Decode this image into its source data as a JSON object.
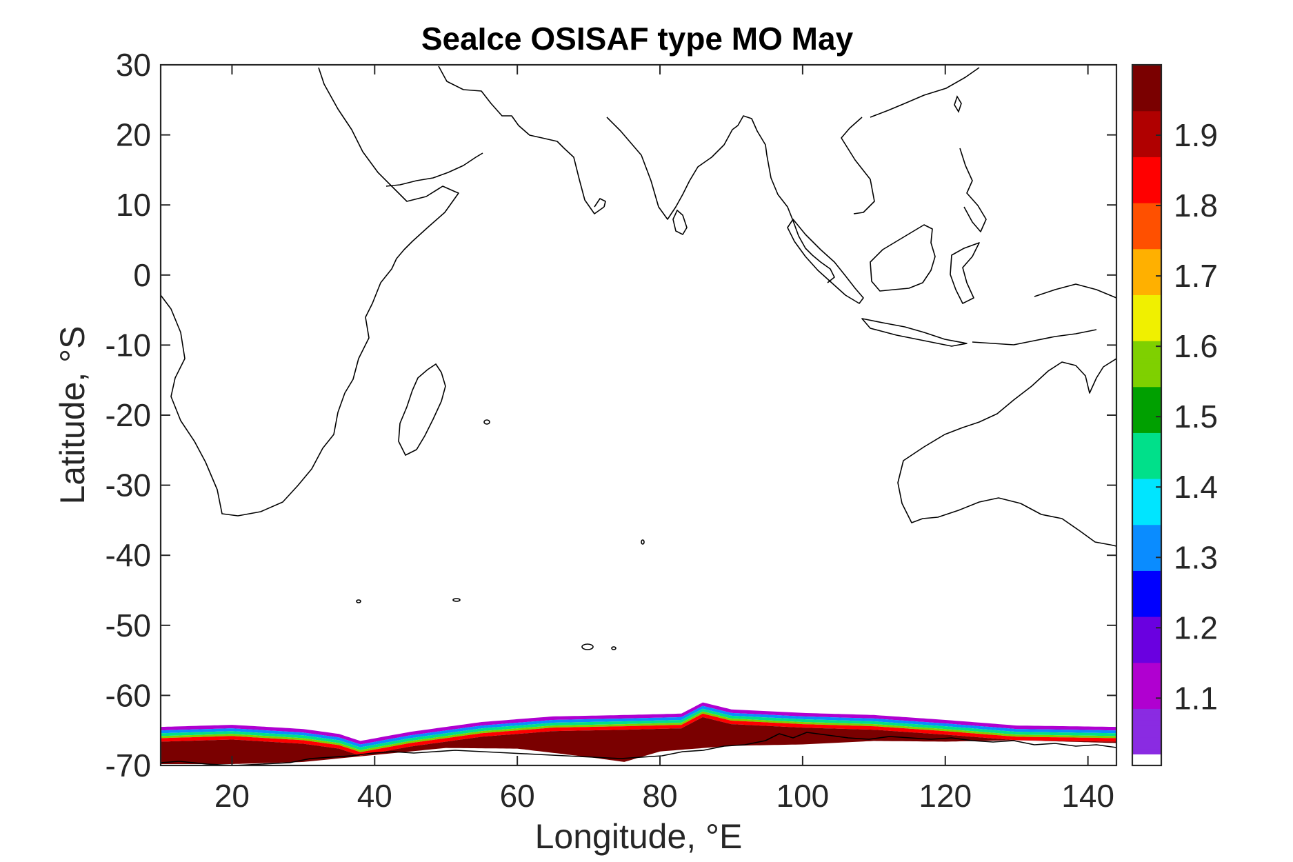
{
  "chart_data": {
    "type": "heatmap",
    "title": "SeaIce OSISAF type MO May",
    "xlabel": "Longitude, °E",
    "ylabel": "Latitude, °S",
    "xlim": [
      10,
      144
    ],
    "ylim": [
      -70,
      30
    ],
    "x_ticks": [
      20,
      40,
      60,
      80,
      100,
      120,
      140
    ],
    "y_ticks": [
      30,
      20,
      10,
      0,
      -10,
      -20,
      -30,
      -40,
      -50,
      -60,
      -70
    ],
    "x_tick_labels": [
      "20",
      "40",
      "60",
      "80",
      "100",
      "120",
      "140"
    ],
    "y_tick_labels": [
      "30",
      "20",
      "10",
      "0",
      "-10",
      "-20",
      "-30",
      "-40",
      "-50",
      "-60",
      "-70"
    ],
    "colorbar": {
      "range": [
        1.02,
        2.0
      ],
      "ticks": [
        1.1,
        1.2,
        1.3,
        1.4,
        1.5,
        1.6,
        1.7,
        1.8,
        1.9
      ],
      "tick_labels": [
        "1.1",
        "1.2",
        "1.3",
        "1.4",
        "1.5",
        "1.6",
        "1.7",
        "1.8",
        "1.9"
      ],
      "colors": [
        "#8a2be2",
        "#b000d0",
        "#6a00e0",
        "#0000ff",
        "#0a8cff",
        "#00e5ff",
        "#00e08a",
        "#00a000",
        "#7fd000",
        "#f0f000",
        "#ffb000",
        "#ff5000",
        "#ff0000",
        "#b00000",
        "#7a0000"
      ],
      "low_color": "#ffffff"
    },
    "ice_band": {
      "north_edge": [
        [
          10,
          -64.5
        ],
        [
          20,
          -64.2
        ],
        [
          30,
          -64.8
        ],
        [
          35,
          -65.5
        ],
        [
          38,
          -66.5
        ],
        [
          45,
          -65.2
        ],
        [
          55,
          -63.8
        ],
        [
          65,
          -63.0
        ],
        [
          75,
          -62.8
        ],
        [
          83,
          -62.6
        ],
        [
          86,
          -61.0
        ],
        [
          90,
          -62.0
        ],
        [
          100,
          -62.5
        ],
        [
          110,
          -62.8
        ],
        [
          120,
          -63.5
        ],
        [
          130,
          -64.3
        ],
        [
          144,
          -64.5
        ]
      ],
      "south_edge": [
        [
          10,
          -69.8
        ],
        [
          20,
          -69.8
        ],
        [
          30,
          -69.5
        ],
        [
          35,
          -69.0
        ],
        [
          40,
          -68.5
        ],
        [
          50,
          -67.5
        ],
        [
          60,
          -67.6
        ],
        [
          70,
          -68.8
        ],
        [
          75,
          -69.5
        ],
        [
          80,
          -68.0
        ],
        [
          90,
          -67.2
        ],
        [
          100,
          -67.0
        ],
        [
          110,
          -66.5
        ],
        [
          120,
          -66.6
        ],
        [
          130,
          -66.4
        ],
        [
          144,
          -66.8
        ]
      ],
      "concentration_zones": [
        {
          "value": 1.15,
          "north_offset": 0.0,
          "thickness": 0.5
        },
        {
          "value": 1.3,
          "north_offset": 0.5,
          "thickness": 0.4
        },
        {
          "value": 1.45,
          "north_offset": 0.9,
          "thickness": 0.4
        },
        {
          "value": 1.55,
          "north_offset": 1.3,
          "thickness": 0.3
        },
        {
          "value": 1.85,
          "north_offset": 1.6,
          "thickness": 0.5
        },
        {
          "value": 1.97,
          "north_offset": 2.1,
          "thickness": 10
        }
      ]
    }
  }
}
